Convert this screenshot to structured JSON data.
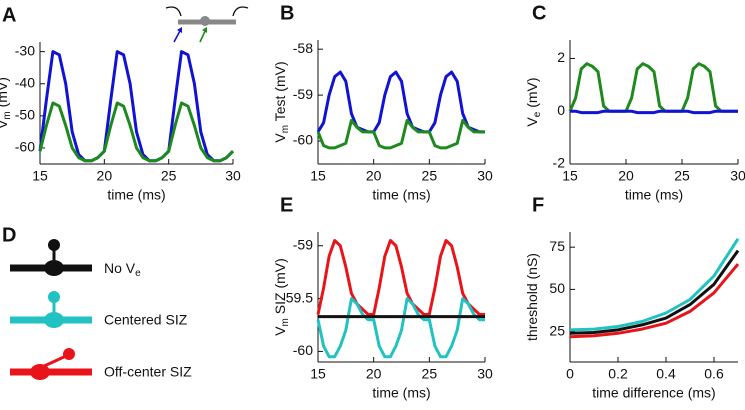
{
  "chart_data": [
    {
      "type": "line",
      "label": "A",
      "xlabel": "time (ms)",
      "ylabel": [
        "V",
        "m",
        " (mV)"
      ],
      "x": [
        15,
        15.5,
        16,
        16.5,
        17,
        17.5,
        18,
        18.5,
        19,
        19.5,
        20,
        20.5,
        21,
        21.5,
        22,
        22.5,
        23,
        23.5,
        24,
        24.5,
        25,
        25.5,
        26,
        26.5,
        27,
        27.5,
        28,
        28.5,
        29,
        29.5,
        30
      ],
      "xlim": [
        15,
        30
      ],
      "xticks": [
        15,
        20,
        25,
        30
      ],
      "ylim": [
        -65,
        -27
      ],
      "yticks": [
        -60,
        -50,
        -40,
        -30
      ],
      "series": [
        {
          "color": "#1212d4",
          "values": [
            -61,
            -45,
            -30,
            -31,
            -40,
            -55,
            -62,
            -64,
            -64,
            -63,
            -61,
            -45,
            -30,
            -31,
            -40,
            -55,
            -62,
            -64,
            -64,
            -63,
            -61,
            -45,
            -30,
            -31,
            -40,
            -55,
            -62,
            -64,
            -64,
            -63,
            -61
          ]
        },
        {
          "color": "#1e8a1e",
          "values": [
            -61,
            -53,
            -46,
            -47,
            -53,
            -60,
            -63,
            -64,
            -64,
            -63,
            -61,
            -53,
            -46,
            -47,
            -53,
            -60,
            -63,
            -64,
            -64,
            -63,
            -61,
            -53,
            -46,
            -47,
            -53,
            -60,
            -63,
            -64,
            -64,
            -63,
            -61
          ]
        }
      ]
    },
    {
      "type": "line",
      "label": "B",
      "xlabel": "time (ms)",
      "ylabel": [
        "V",
        "m",
        " Test (mV)"
      ],
      "x": [
        15,
        15.5,
        16,
        16.5,
        17,
        17.5,
        18,
        18.5,
        19,
        19.5,
        20,
        20.5,
        21,
        21.5,
        22,
        22.5,
        23,
        23.5,
        24,
        24.5,
        25,
        25.5,
        26,
        26.5,
        27,
        27.5,
        28,
        28.5,
        29,
        29.5,
        30
      ],
      "xlim": [
        15,
        30
      ],
      "xticks": [
        15,
        20,
        25,
        30
      ],
      "ylim": [
        -60.5,
        -57.8
      ],
      "yticks": [
        -60,
        -59,
        -58
      ],
      "series": [
        {
          "color": "#1212d4",
          "values": [
            -59.8,
            -59.6,
            -59.0,
            -58.6,
            -58.5,
            -58.7,
            -59.4,
            -59.7,
            -59.75,
            -59.8,
            -59.8,
            -59.6,
            -59.0,
            -58.6,
            -58.5,
            -58.7,
            -59.4,
            -59.7,
            -59.75,
            -59.8,
            -59.8,
            -59.6,
            -59.0,
            -58.6,
            -58.5,
            -58.7,
            -59.4,
            -59.7,
            -59.75,
            -59.8,
            -59.8
          ]
        },
        {
          "color": "#1e8a1e",
          "values": [
            -59.8,
            -60.1,
            -60.15,
            -60.15,
            -60.1,
            -60.05,
            -59.55,
            -59.7,
            -59.8,
            -59.8,
            -59.8,
            -60.1,
            -60.15,
            -60.15,
            -60.1,
            -60.05,
            -59.55,
            -59.7,
            -59.8,
            -59.8,
            -59.8,
            -60.1,
            -60.15,
            -60.15,
            -60.1,
            -60.05,
            -59.55,
            -59.7,
            -59.8,
            -59.8,
            -59.8
          ]
        }
      ]
    },
    {
      "type": "line",
      "label": "C",
      "xlabel": "time (ms)",
      "ylabel": [
        "V",
        "e",
        " (mV)"
      ],
      "x": [
        15,
        15.5,
        16,
        16.5,
        17,
        17.5,
        18,
        18.5,
        19,
        19.5,
        20,
        20.5,
        21,
        21.5,
        22,
        22.5,
        23,
        23.5,
        24,
        24.5,
        25,
        25.5,
        26,
        26.5,
        27,
        27.5,
        28,
        28.5,
        29,
        29.5,
        30
      ],
      "xlim": [
        15,
        30
      ],
      "xticks": [
        15,
        20,
        25,
        30
      ],
      "ylim": [
        -2,
        2.7
      ],
      "yticks": [
        -2,
        0,
        2
      ],
      "series": [
        {
          "color": "#1e8a1e",
          "values": [
            0,
            0.5,
            1.6,
            1.8,
            1.7,
            1.5,
            0.2,
            0,
            0,
            0,
            0,
            0.5,
            1.6,
            1.8,
            1.7,
            1.5,
            0.2,
            0,
            0,
            0,
            0,
            0.5,
            1.6,
            1.8,
            1.7,
            1.5,
            0.2,
            0,
            0,
            0,
            0
          ]
        },
        {
          "color": "#1212d4",
          "values": [
            0,
            0,
            -0.05,
            -0.05,
            -0.05,
            -0.05,
            0,
            0,
            0,
            0,
            0,
            0,
            -0.05,
            -0.05,
            -0.05,
            -0.05,
            0,
            0,
            0,
            0,
            0,
            0,
            -0.05,
            -0.05,
            -0.05,
            -0.05,
            0,
            0,
            0,
            0,
            0
          ]
        }
      ]
    },
    {
      "type": "line",
      "label": "E",
      "xlabel": "time (ms)",
      "ylabel": [
        "V",
        "m",
        " SIZ (mV)"
      ],
      "x": [
        15,
        15.5,
        16,
        16.5,
        17,
        17.5,
        18,
        18.5,
        19,
        19.5,
        20,
        20.5,
        21,
        21.5,
        22,
        22.5,
        23,
        23.5,
        24,
        24.5,
        25,
        25.5,
        26,
        26.5,
        27,
        27.5,
        28,
        28.5,
        29,
        29.5,
        30
      ],
      "xlim": [
        15,
        30
      ],
      "xticks": [
        15,
        20,
        25,
        30
      ],
      "ylim": [
        -60.1,
        -58.87
      ],
      "yticks": [
        -60,
        -59.5,
        -59
      ],
      "series": [
        {
          "color": "#e8141a",
          "values": [
            -59.65,
            -59.4,
            -59.1,
            -58.95,
            -59.0,
            -59.2,
            -59.45,
            -59.55,
            -59.6,
            -59.65,
            -59.65,
            -59.4,
            -59.1,
            -58.95,
            -59.0,
            -59.2,
            -59.45,
            -59.55,
            -59.6,
            -59.65,
            -59.65,
            -59.4,
            -59.1,
            -58.95,
            -59.0,
            -59.2,
            -59.45,
            -59.55,
            -59.6,
            -59.65,
            -59.65
          ]
        },
        {
          "color": "#22c2c2",
          "values": [
            -59.7,
            -59.95,
            -60.05,
            -60.05,
            -59.95,
            -59.8,
            -59.5,
            -59.55,
            -59.65,
            -59.7,
            -59.7,
            -59.95,
            -60.05,
            -60.05,
            -59.95,
            -59.8,
            -59.5,
            -59.55,
            -59.65,
            -59.7,
            -59.7,
            -59.95,
            -60.05,
            -60.05,
            -59.95,
            -59.8,
            -59.5,
            -59.55,
            -59.65,
            -59.7,
            -59.7
          ]
        },
        {
          "color": "#111111",
          "values": [
            -59.67,
            -59.67,
            -59.67,
            -59.67,
            -59.67,
            -59.67,
            -59.67,
            -59.67,
            -59.67,
            -59.67,
            -59.67,
            -59.67,
            -59.67,
            -59.67,
            -59.67,
            -59.67,
            -59.67,
            -59.67,
            -59.67,
            -59.67,
            -59.67,
            -59.67,
            -59.67,
            -59.67,
            -59.67,
            -59.67,
            -59.67,
            -59.67,
            -59.67,
            -59.67,
            -59.67
          ]
        }
      ]
    },
    {
      "type": "line",
      "label": "F",
      "xlabel": "time difference (ms)",
      "ylabel": [
        "threshold (nS)"
      ],
      "x": [
        0,
        0.1,
        0.2,
        0.3,
        0.4,
        0.5,
        0.6,
        0.7
      ],
      "xlim": [
        0,
        0.7
      ],
      "xticks": [
        0,
        0.2,
        0.4,
        0.6
      ],
      "ylim": [
        7,
        84
      ],
      "yticks": [
        25,
        50,
        75
      ],
      "series": [
        {
          "color": "#22c2c2",
          "values": [
            26,
            26.5,
            28,
            31,
            36,
            44,
            58,
            80
          ]
        },
        {
          "color": "#111111",
          "values": [
            24,
            24.5,
            26,
            29,
            33,
            41,
            53,
            73
          ]
        },
        {
          "color": "#e8141a",
          "values": [
            22,
            22.5,
            24,
            26.5,
            30,
            37,
            48,
            65
          ]
        }
      ]
    }
  ],
  "legend_panel": {
    "label": "D",
    "items": [
      [
        "No V",
        "e"
      ],
      [
        "Centered SIZ"
      ],
      [
        "Off-center SIZ"
      ]
    ]
  }
}
